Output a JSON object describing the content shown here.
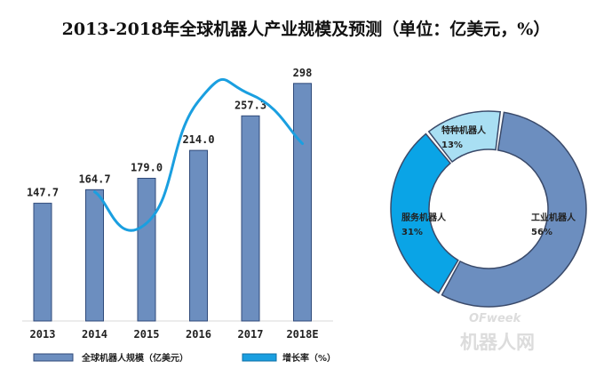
{
  "chart_data": [
    {
      "type": "bar",
      "title": "2013-2018年全球机器人产业规模及预测（单位：亿美元，%）",
      "categories": [
        "2013",
        "2014",
        "2015",
        "2016",
        "2017",
        "2018E"
      ],
      "series": [
        {
          "name": "全球机器人规模（亿美元）",
          "values": [
            147.7,
            164.7,
            179.0,
            214.0,
            257.3,
            298
          ],
          "labels": [
            "147.7",
            "164.7",
            "179.0",
            "214.0",
            "257.3",
            "298"
          ],
          "color": "#6c8ebf"
        },
        {
          "name": "增长率（%）",
          "type": "line",
          "values": [
            null,
            11.5,
            8.7,
            19.6,
            20.2,
            15.8
          ],
          "color": "#1a9fe0"
        }
      ],
      "ylim": [
        0,
        320
      ],
      "grid": false,
      "legend_placement": "bottom"
    },
    {
      "type": "pie",
      "style": "donut",
      "slices": [
        {
          "label": "工业机器人",
          "value": 56,
          "value_label": "56%",
          "color": "#6c8ebf"
        },
        {
          "label": "服务机器人",
          "value": 31,
          "value_label": "31%",
          "color": "#0aa4e6"
        },
        {
          "label": "特种机器人",
          "value": 13,
          "value_label": "13%",
          "color": "#a9dff3"
        }
      ]
    }
  ],
  "watermark": {
    "brand": "OFweek",
    "site": "机器人网"
  }
}
